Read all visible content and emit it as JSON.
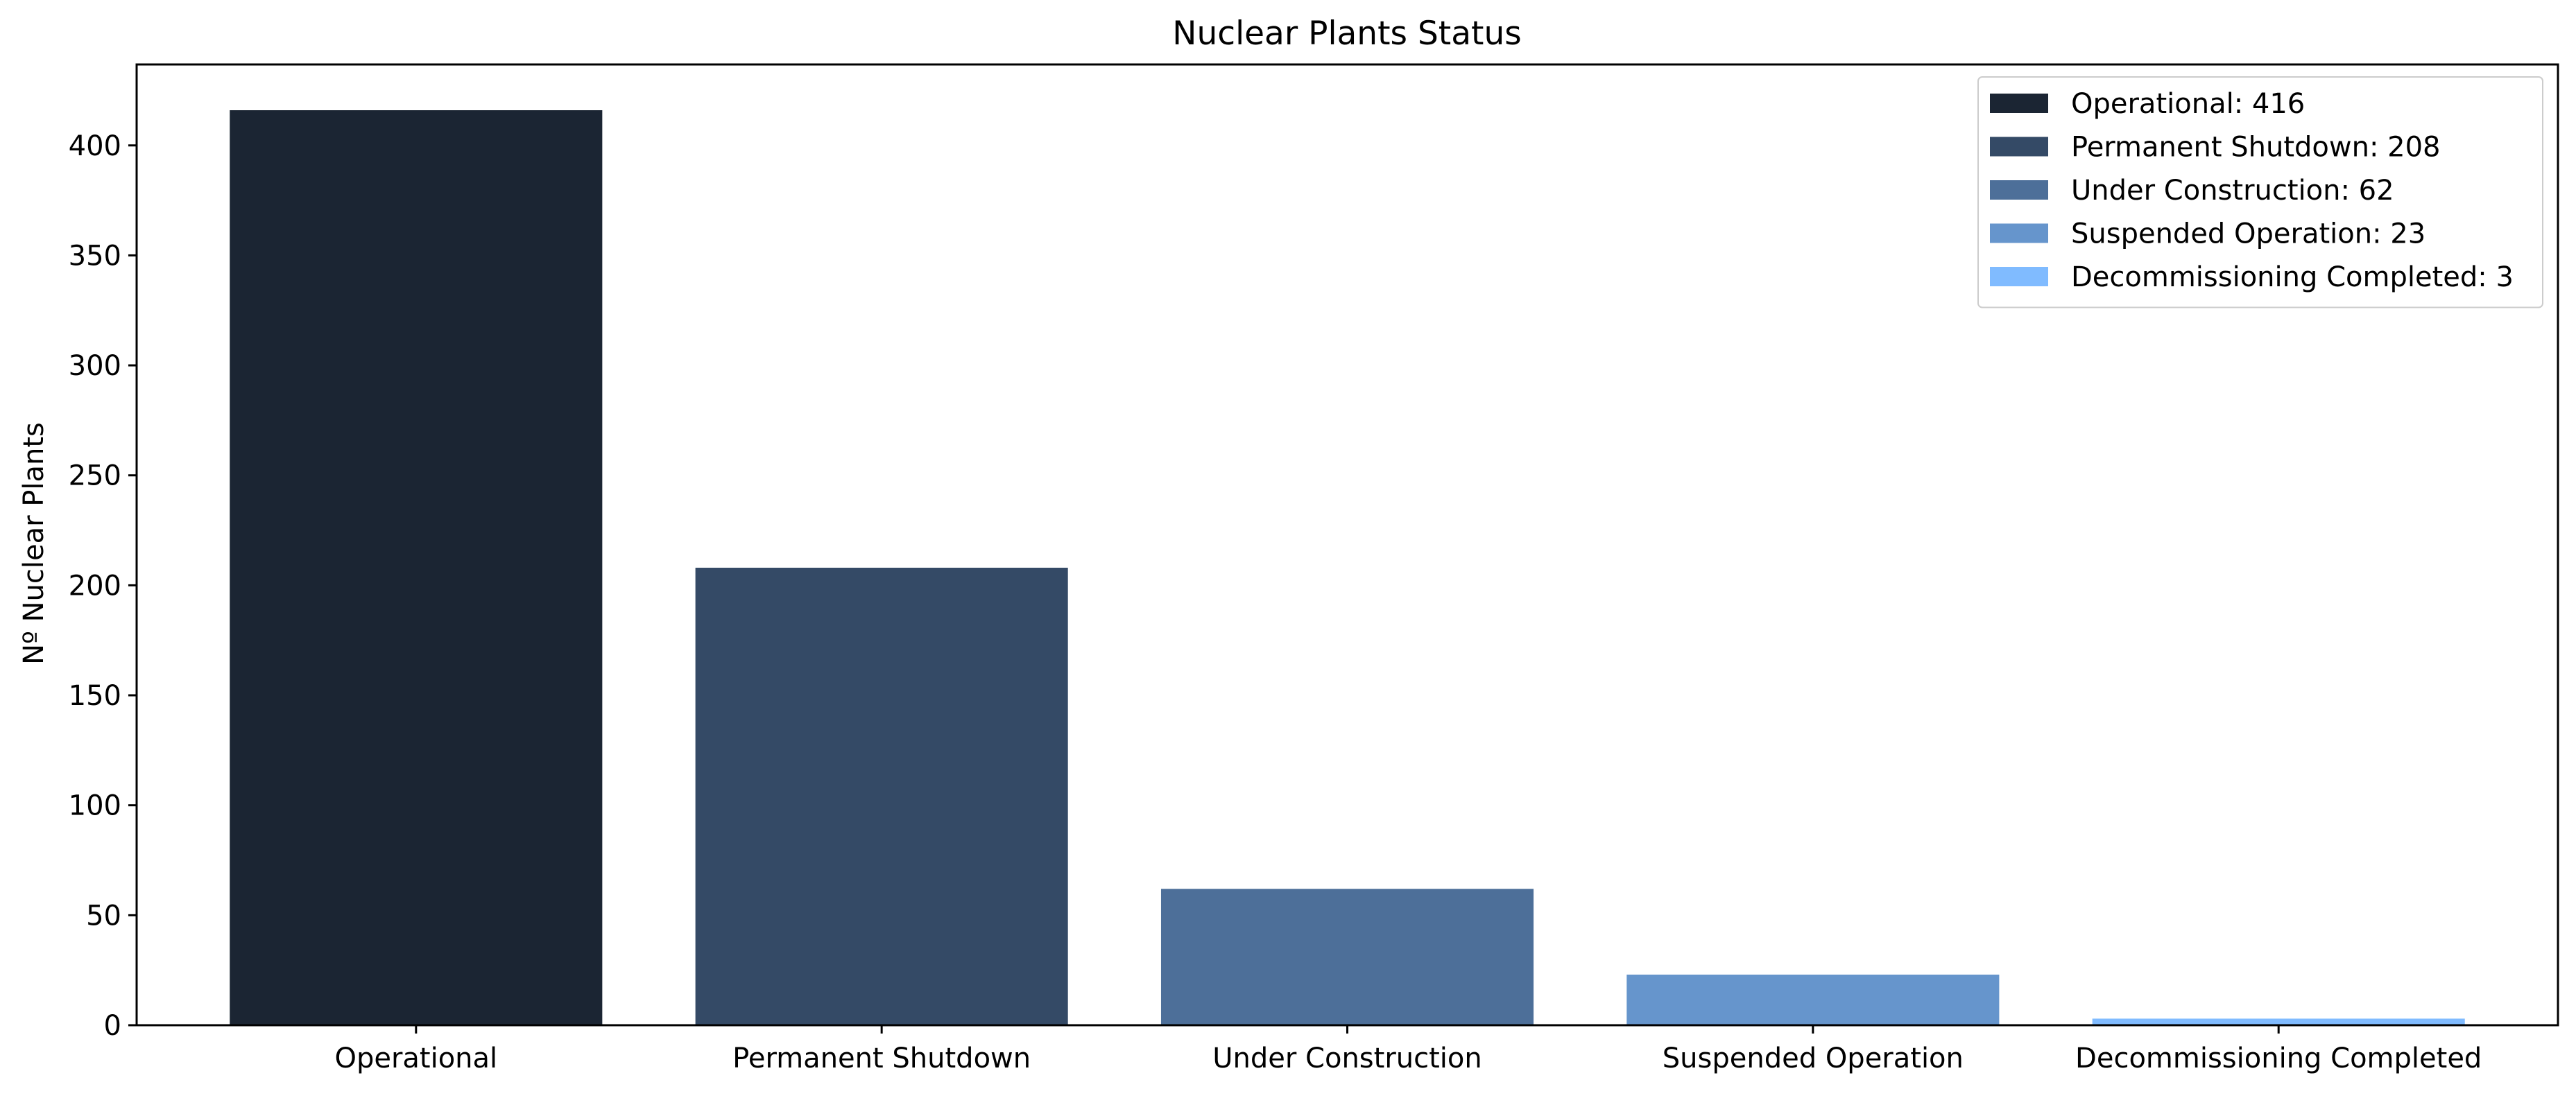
{
  "chart_data": {
    "type": "bar",
    "title": "Nuclear Plants Status",
    "xlabel": "",
    "ylabel": "Nº Nuclear Plants",
    "categories": [
      "Operational",
      "Permanent Shutdown",
      "Under Construction",
      "Suspended Operation",
      "Decommissioning Completed"
    ],
    "values": [
      416,
      208,
      62,
      23,
      3
    ],
    "colors": [
      "#1b2533",
      "#344a66",
      "#4d6f99",
      "#6695cc",
      "#80bbff"
    ],
    "ylim": [
      0,
      436.8
    ],
    "yticks": [
      0,
      50,
      100,
      150,
      200,
      250,
      300,
      350,
      400
    ],
    "legend": {
      "position": "top-right",
      "entries": [
        "Operational: 416",
        "Permanent Shutdown: 208",
        "Under Construction: 62",
        "Suspended Operation: 23",
        "Decommissioning Completed: 3"
      ]
    },
    "grid": false
  }
}
